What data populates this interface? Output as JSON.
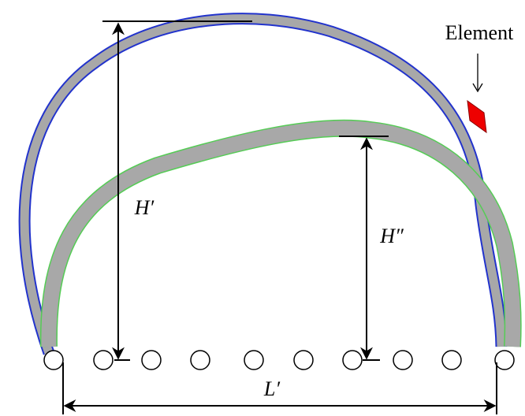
{
  "labels": {
    "element": "Element",
    "h_prime": "H′",
    "h_double_prime": "H″",
    "l_prime": "L′"
  }
}
